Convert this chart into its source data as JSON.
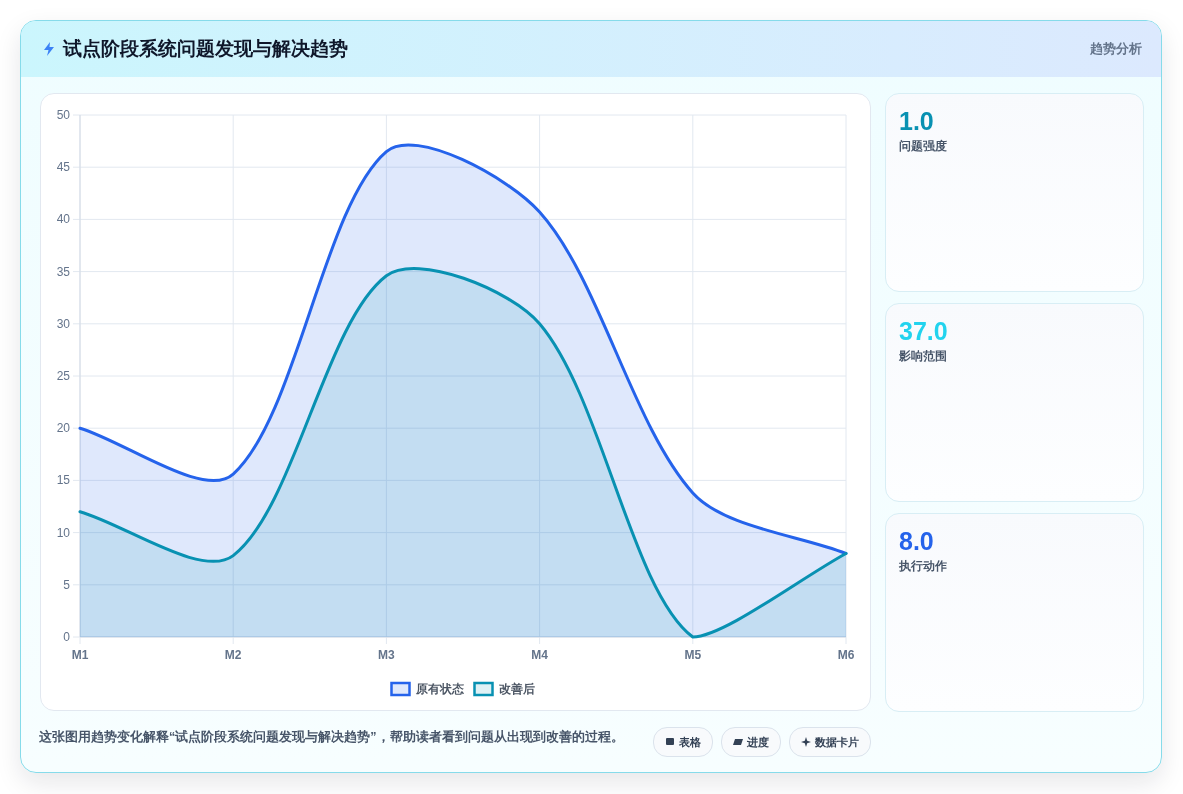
{
  "chart_data": [
    {
      "type": "area",
      "title": "试点阶段系统问题发现与解决趋势",
      "categories": [
        "M1",
        "M2",
        "M3",
        "M4",
        "M5",
        "M6"
      ],
      "series": [
        {
          "name": "原有状态",
          "color": "#2563eb",
          "values": [
            20,
            15.6,
            46.5,
            40.7,
            13.8,
            8
          ]
        },
        {
          "name": "改善后",
          "color": "#0891b2",
          "values": [
            12,
            7.8,
            34.6,
            30,
            0,
            8
          ]
        }
      ],
      "ylim": [
        0,
        50
      ],
      "yticks": [
        0,
        5,
        10,
        15,
        20,
        25,
        30,
        35,
        40,
        45,
        50
      ],
      "grid": true,
      "legend": "bottom",
      "annotations": [
        "这张图用趋势变化解释“试点阶段系统问题发现与解决趋势”，帮助读者看到问题从出现到改善的过程。",
        "表格",
        "进度",
        "数据卡片"
      ]
    },
    {
      "type": "other",
      "title": "趋势分析",
      "annotations": [
        "1.0",
        "问题强度",
        "37.0",
        "影响范围",
        "8.0",
        "执行动作"
      ]
    }
  ]
}
